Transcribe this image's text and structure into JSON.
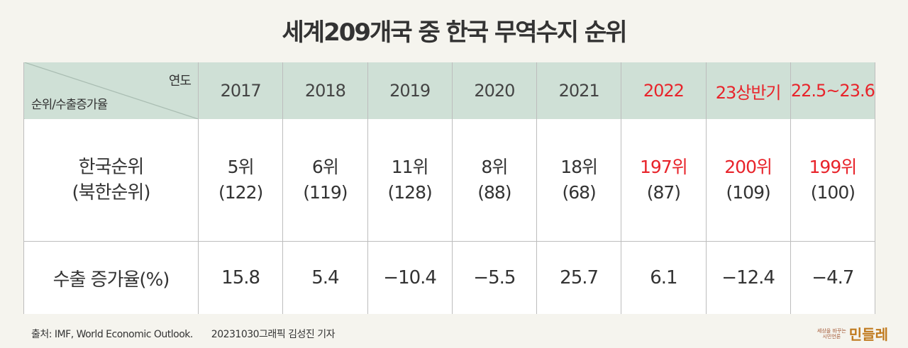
{
  "title": "세계209개국 중 한국 무역수지 순위",
  "header": {
    "corner_top": "연도",
    "corner_bottom": "순위/수출증가율",
    "years": [
      {
        "label": "2017",
        "red": false
      },
      {
        "label": "2018",
        "red": false
      },
      {
        "label": "2019",
        "red": false
      },
      {
        "label": "2020",
        "red": false
      },
      {
        "label": "2021",
        "red": false
      },
      {
        "label": "2022",
        "red": true
      },
      {
        "label": "23상반기",
        "red": true
      },
      {
        "label": "22.5~23.6",
        "red": true
      }
    ]
  },
  "rows": {
    "rank": {
      "label_line1": "한국순위",
      "label_line2": "(북한순위)",
      "cells": [
        {
          "rank": "5위",
          "north": "(122)"
        },
        {
          "rank": "6위",
          "north": "(119)"
        },
        {
          "rank": "11위",
          "north": "(128)"
        },
        {
          "rank": "8위",
          "north": "(88)"
        },
        {
          "rank": "18위",
          "north": "(68)"
        },
        {
          "rank": "197위",
          "north": "(87)"
        },
        {
          "rank": "200위",
          "north": "(109)"
        },
        {
          "rank": "199위",
          "north": "(100)"
        }
      ]
    },
    "growth": {
      "label": "수출 증가율(%)",
      "values": [
        "15.8",
        "5.4",
        "−10.4",
        "−5.5",
        "25.7",
        "6.1",
        "−12.4",
        "−4.7"
      ]
    }
  },
  "footer": {
    "source": "출처: IMF, World Economic Outlook.",
    "credit": "20231030그래픽 김성진 기자"
  },
  "logo": {
    "small_line1": "세상을 바꾸는",
    "small_line2": "시민언론",
    "name": "민들레"
  }
}
